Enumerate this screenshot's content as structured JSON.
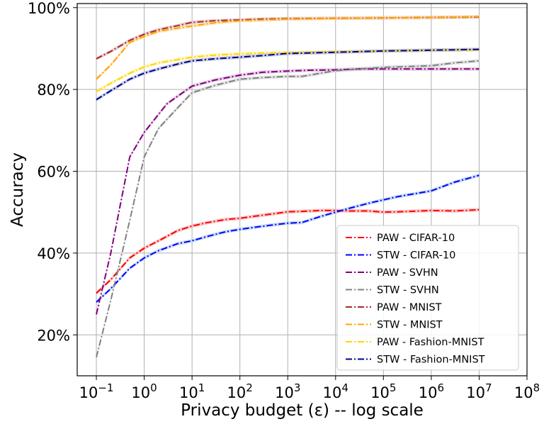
{
  "chart_data": {
    "type": "line",
    "title": "",
    "xlabel": "Privacy budget (ε) -- log scale",
    "ylabel": "Accuracy",
    "x_scale": "log",
    "xlim_log10": [
      -1.4,
      8
    ],
    "ylim": [
      10,
      101
    ],
    "x_ticks": [
      {
        "exp": -1,
        "base": "10",
        "sup": "−1"
      },
      {
        "exp": 0,
        "base": "10",
        "sup": "0"
      },
      {
        "exp": 1,
        "base": "10",
        "sup": "1"
      },
      {
        "exp": 2,
        "base": "10",
        "sup": "2"
      },
      {
        "exp": 3,
        "base": "10",
        "sup": "3"
      },
      {
        "exp": 4,
        "base": "10",
        "sup": "4"
      },
      {
        "exp": 5,
        "base": "10",
        "sup": "5"
      },
      {
        "exp": 6,
        "base": "10",
        "sup": "6"
      },
      {
        "exp": 7,
        "base": "10",
        "sup": "7"
      },
      {
        "exp": 8,
        "base": "10",
        "sup": "8"
      }
    ],
    "y_ticks": [
      {
        "value": 20,
        "label": "20%"
      },
      {
        "value": 40,
        "label": "40%"
      },
      {
        "value": 60,
        "label": "60%"
      },
      {
        "value": 80,
        "label": "80%"
      },
      {
        "value": 100,
        "label": "100%"
      }
    ],
    "grid": true,
    "legend_position": "bottom-right",
    "line_style": "dash-dot",
    "series": [
      {
        "name": " PAW - CIFAR-10",
        "color": "#ff0000",
        "band": "#f4a9a9",
        "x": [
          0.1,
          0.2,
          0.5,
          1,
          2,
          5,
          10,
          20,
          50,
          100,
          200,
          500,
          1000,
          2000,
          5000,
          10000,
          20000,
          50000,
          100000,
          200000,
          1000000,
          3000000,
          10000000
        ],
        "y": [
          30.2,
          33.5,
          38.8,
          41.2,
          43.0,
          45.5,
          46.6,
          47.4,
          48.2,
          48.5,
          49.0,
          49.6,
          50.1,
          50.2,
          50.4,
          50.4,
          50.3,
          50.3,
          50.0,
          50.1,
          50.4,
          50.3,
          50.6
        ]
      },
      {
        "name": "STW - CIFAR-10",
        "color": "#0000ff",
        "band": "#a8c8ec",
        "x": [
          0.1,
          0.2,
          0.5,
          1,
          2,
          5,
          10,
          20,
          50,
          100,
          200,
          500,
          1000,
          2000,
          5000,
          10000,
          20000,
          50000,
          100000,
          200000,
          1000000,
          3000000,
          10000000
        ],
        "y": [
          28.0,
          31.3,
          36.3,
          38.8,
          40.6,
          42.3,
          43.0,
          44.0,
          45.2,
          45.8,
          46.3,
          46.9,
          47.3,
          47.5,
          49.0,
          50.0,
          51.0,
          52.2,
          53.0,
          53.8,
          55.2,
          57.3,
          59.0
        ]
      },
      {
        "name": " PAW - SVHN",
        "color": "#800080",
        "band": "#d6b3d6",
        "x": [
          0.1,
          0.2,
          0.5,
          1,
          3,
          10,
          30,
          100,
          300,
          1000,
          3000,
          10000,
          30000,
          100000,
          1000000,
          10000000
        ],
        "y": [
          25.0,
          40.0,
          63.5,
          69.5,
          76.5,
          80.8,
          82.3,
          83.5,
          84.2,
          84.5,
          84.7,
          84.8,
          85.0,
          85.0,
          85.0,
          85.0
        ]
      },
      {
        "name": "STW - SVHN",
        "color": "#808080",
        "band": "#d2d2d2",
        "x": [
          0.1,
          0.2,
          0.5,
          1,
          2,
          5,
          10,
          30,
          100,
          300,
          1000,
          2000,
          5000,
          10000,
          30000,
          100000,
          1000000,
          3000000,
          10000000
        ],
        "y": [
          14.5,
          28.5,
          48.0,
          63.5,
          70.5,
          75.5,
          79.2,
          81.0,
          82.5,
          82.9,
          83.2,
          83.2,
          84.0,
          84.6,
          85.0,
          85.4,
          85.8,
          86.5,
          87.0
        ]
      },
      {
        "name": " PAW - MNIST",
        "color": "#a52a2a",
        "band": "#ddb8b8",
        "x": [
          0.1,
          0.2,
          0.5,
          1,
          2,
          5,
          10,
          30,
          100,
          300,
          1000,
          10000,
          100000,
          1000000,
          10000000
        ],
        "y": [
          87.5,
          89.3,
          92.0,
          93.5,
          94.6,
          95.6,
          96.4,
          96.8,
          97.0,
          97.2,
          97.3,
          97.4,
          97.5,
          97.6,
          97.7
        ]
      },
      {
        "name": "STW - MNIST",
        "color": "#ffa500",
        "band": "#ffd9a0",
        "x": [
          0.1,
          0.2,
          0.5,
          1,
          2,
          5,
          10,
          30,
          100,
          300,
          1000,
          10000,
          100000,
          1000000,
          10000000
        ],
        "y": [
          82.5,
          86.0,
          91.5,
          93.0,
          94.2,
          95.0,
          95.5,
          96.3,
          96.8,
          97.0,
          97.2,
          97.4,
          97.5,
          97.6,
          97.8
        ]
      },
      {
        "name": " PAW - Fashion-MNIST",
        "color": "#ffd700",
        "band": "#fff0a0",
        "x": [
          0.1,
          0.2,
          0.5,
          1,
          2,
          5,
          10,
          30,
          100,
          300,
          1000,
          10000,
          100000,
          1000000,
          10000000
        ],
        "y": [
          79.5,
          81.5,
          84.0,
          85.5,
          86.5,
          87.3,
          87.9,
          88.4,
          88.7,
          88.9,
          89.0,
          89.2,
          89.4,
          89.6,
          89.7
        ]
      },
      {
        "name": "STW - Fashion-MNIST",
        "color": "#00008b",
        "band": "#a8b0d8",
        "x": [
          0.1,
          0.2,
          0.5,
          1,
          2,
          5,
          10,
          30,
          100,
          300,
          1000,
          10000,
          100000,
          1000000,
          10000000
        ],
        "y": [
          77.5,
          79.7,
          82.5,
          84.0,
          85.0,
          86.2,
          87.0,
          87.5,
          87.9,
          88.3,
          88.8,
          89.1,
          89.4,
          89.6,
          89.8
        ]
      }
    ]
  }
}
